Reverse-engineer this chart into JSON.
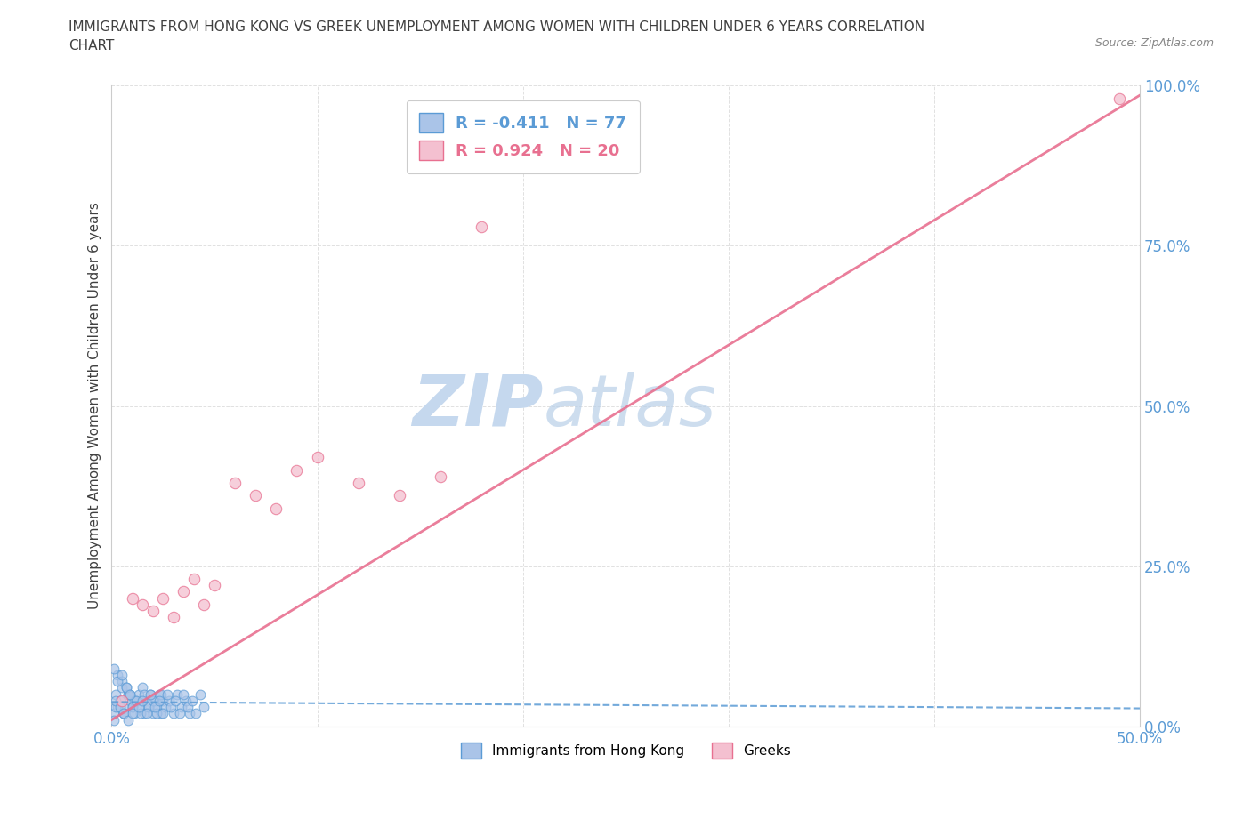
{
  "title": "IMMIGRANTS FROM HONG KONG VS GREEK UNEMPLOYMENT AMONG WOMEN WITH CHILDREN UNDER 6 YEARS CORRELATION\nCHART",
  "source": "Source: ZipAtlas.com",
  "ylabel": "Unemployment Among Women with Children Under 6 years",
  "xlim": [
    0.0,
    0.5
  ],
  "ylim": [
    0.0,
    1.0
  ],
  "xticks": [
    0.0,
    0.1,
    0.2,
    0.3,
    0.4,
    0.5
  ],
  "yticks": [
    0.0,
    0.25,
    0.5,
    0.75,
    1.0
  ],
  "xtick_labels": [
    "0.0%",
    "",
    "",
    "",
    "",
    "50.0%"
  ],
  "ytick_labels": [
    "0.0%",
    "25.0%",
    "50.0%",
    "75.0%",
    "100.0%"
  ],
  "hk_x": [
    0.001,
    0.002,
    0.003,
    0.004,
    0.005,
    0.006,
    0.007,
    0.008,
    0.009,
    0.01,
    0.011,
    0.012,
    0.013,
    0.014,
    0.015,
    0.016,
    0.017,
    0.018,
    0.019,
    0.02,
    0.021,
    0.022,
    0.023,
    0.024,
    0.025,
    0.003,
    0.005,
    0.007,
    0.009,
    0.011,
    0.001,
    0.002,
    0.004,
    0.006,
    0.008,
    0.01,
    0.012,
    0.014,
    0.016,
    0.018,
    0.02,
    0.022,
    0.024,
    0.026,
    0.028,
    0.03,
    0.032,
    0.034,
    0.036,
    0.038,
    0.001,
    0.003,
    0.005,
    0.007,
    0.009,
    0.002,
    0.004,
    0.006,
    0.008,
    0.01,
    0.013,
    0.015,
    0.017,
    0.019,
    0.021,
    0.023,
    0.025,
    0.027,
    0.029,
    0.031,
    0.033,
    0.035,
    0.037,
    0.039,
    0.041,
    0.043,
    0.045
  ],
  "hk_y": [
    0.02,
    0.05,
    0.03,
    0.04,
    0.06,
    0.02,
    0.03,
    0.05,
    0.04,
    0.03,
    0.02,
    0.04,
    0.05,
    0.03,
    0.06,
    0.02,
    0.04,
    0.03,
    0.05,
    0.02,
    0.04,
    0.03,
    0.05,
    0.02,
    0.04,
    0.08,
    0.07,
    0.06,
    0.05,
    0.04,
    0.01,
    0.03,
    0.04,
    0.02,
    0.05,
    0.03,
    0.04,
    0.02,
    0.05,
    0.03,
    0.04,
    0.02,
    0.05,
    0.03,
    0.04,
    0.02,
    0.05,
    0.03,
    0.04,
    0.02,
    0.09,
    0.07,
    0.08,
    0.06,
    0.05,
    0.04,
    0.03,
    0.02,
    0.01,
    0.02,
    0.03,
    0.04,
    0.02,
    0.05,
    0.03,
    0.04,
    0.02,
    0.05,
    0.03,
    0.04,
    0.02,
    0.05,
    0.03,
    0.04,
    0.02,
    0.05,
    0.03
  ],
  "greek_x": [
    0.005,
    0.01,
    0.015,
    0.02,
    0.025,
    0.03,
    0.035,
    0.04,
    0.045,
    0.05,
    0.06,
    0.07,
    0.08,
    0.09,
    0.1,
    0.12,
    0.14,
    0.16,
    0.18,
    0.49
  ],
  "greek_y": [
    0.04,
    0.2,
    0.19,
    0.18,
    0.2,
    0.17,
    0.21,
    0.23,
    0.19,
    0.22,
    0.38,
    0.36,
    0.34,
    0.4,
    0.42,
    0.38,
    0.36,
    0.39,
    0.78,
    0.98
  ],
  "hk_R": -0.411,
  "hk_N": 77,
  "greek_R": 0.924,
  "greek_N": 20,
  "hk_color": "#aac4e8",
  "hk_edge_color": "#5b9bd5",
  "greek_color": "#f4c0d0",
  "greek_edge_color": "#e87090",
  "hk_line_color": "#5b9bd5",
  "greek_line_color": "#e87090",
  "bg_color": "#ffffff",
  "grid_color": "#cccccc",
  "title_color": "#404040",
  "axis_label_color": "#5b9bd5",
  "watermark_color_zip": "#c5d8ee",
  "watermark_color_atlas": "#c5d8ee",
  "legend_box_hk": "#aac4e8",
  "legend_box_greek": "#f4c0d0",
  "marker_size": 60
}
